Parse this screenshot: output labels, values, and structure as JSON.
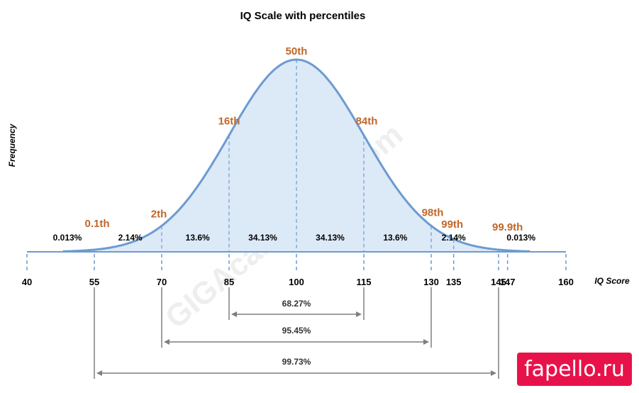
{
  "chart_data": {
    "type": "area",
    "title": "IQ Scale with percentiles",
    "xlabel": "IQ Score",
    "ylabel": "Frequency",
    "mean": 100,
    "sd": 15,
    "xlim": [
      40,
      160
    ],
    "ticks": [
      40,
      55,
      70,
      85,
      100,
      115,
      130,
      135,
      145,
      147,
      160
    ],
    "percentiles": [
      {
        "label": "0.1th",
        "x": 55
      },
      {
        "label": "2th",
        "x": 70
      },
      {
        "label": "16th",
        "x": 85
      },
      {
        "label": "50th",
        "x": 100
      },
      {
        "label": "84th",
        "x": 115
      },
      {
        "label": "98th",
        "x": 130
      },
      {
        "label": "99th",
        "x": 135
      },
      {
        "label": "99.9th",
        "x": 147
      }
    ],
    "region_labels": [
      {
        "label": "0.013%",
        "x": 49
      },
      {
        "label": "2.14%",
        "x": 63
      },
      {
        "label": "13.6%",
        "x": 78
      },
      {
        "label": "34.13%",
        "x": 92.5
      },
      {
        "label": "34.13%",
        "x": 107.5
      },
      {
        "label": "13.6%",
        "x": 122
      },
      {
        "label": "2.14%",
        "x": 135
      },
      {
        "label": "0.013%",
        "x": 150
      }
    ],
    "ranges": [
      {
        "label": "68.27%",
        "from": 85,
        "to": 115
      },
      {
        "label": "95.45%",
        "from": 70,
        "to": 130
      },
      {
        "label": "99.73%",
        "from": 55,
        "to": 145
      }
    ],
    "colors": {
      "curve": "#6c9bd0",
      "fill": "#dce9f7",
      "percentile_text": "#c0672a",
      "range_arrow": "#7f7f7f"
    }
  },
  "watermark": "GIGAcalculator.com",
  "brand": "fapello.ru"
}
